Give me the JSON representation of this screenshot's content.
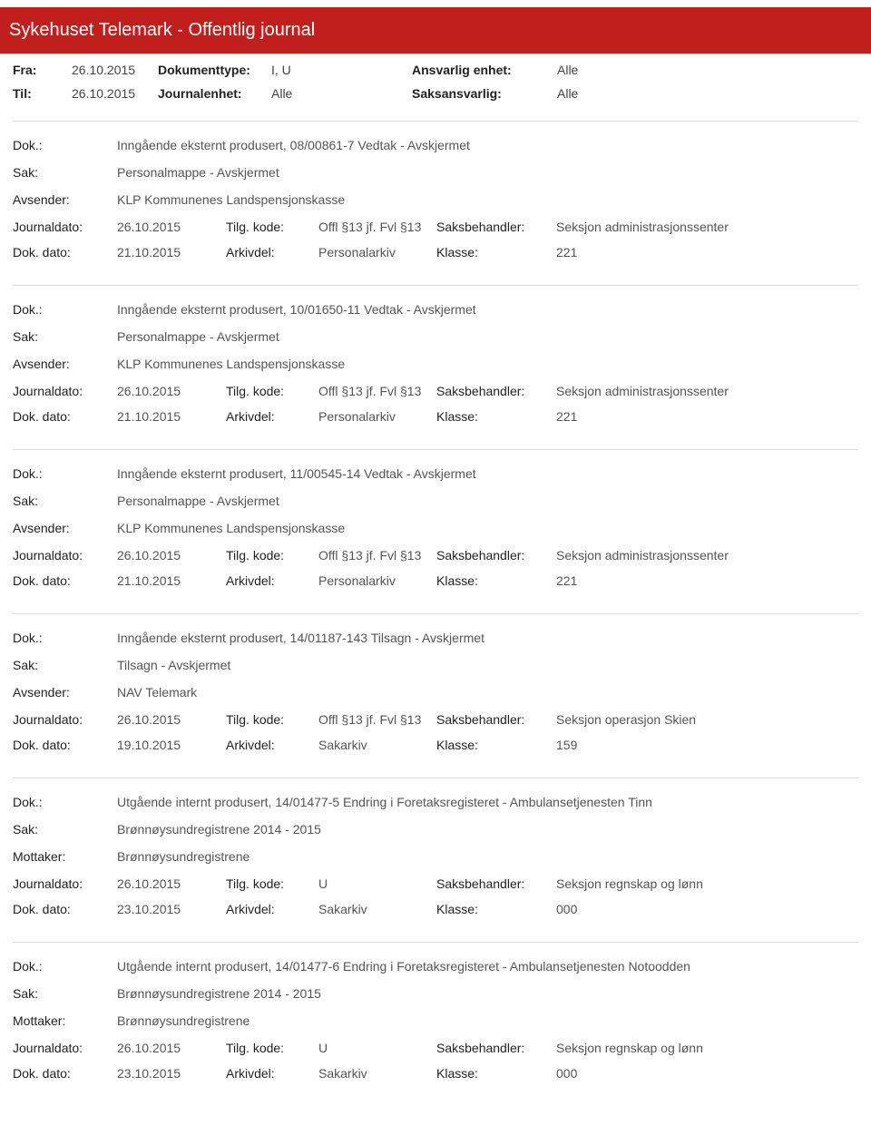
{
  "header": {
    "title": "Sykehuset Telemark - Offentlig journal"
  },
  "filters": {
    "fra_label": "Fra:",
    "fra_value": "26.10.2015",
    "til_label": "Til:",
    "til_value": "26.10.2015",
    "dokumenttype_label": "Dokumenttype:",
    "dokumenttype_value": "I, U",
    "journalenhet_label": "Journalenhet:",
    "journalenhet_value": "Alle",
    "ansvarlig_label": "Ansvarlig enhet:",
    "ansvarlig_value": "Alle",
    "saksansvarlig_label": "Saksansvarlig:",
    "saksansvarlig_value": "Alle"
  },
  "labels": {
    "dok": "Dok.:",
    "sak": "Sak:",
    "avsender": "Avsender:",
    "mottaker": "Mottaker:",
    "journaldato": "Journaldato:",
    "tilgkode": "Tilg. kode:",
    "saksbehandler": "Saksbehandler:",
    "dokdato": "Dok. dato:",
    "arkivdel": "Arkivdel:",
    "klasse": "Klasse:"
  },
  "entries": [
    {
      "dok": "Inngående eksternt produsert, 08/00861-7 Vedtak - Avskjermet",
      "sak": "Personalmappe - Avskjermet",
      "party_label": "Avsender:",
      "party": "KLP Kommunenes Landspensjonskasse",
      "journaldato": "26.10.2015",
      "tilgkode": "Offl §13 jf. Fvl §13",
      "saksbehandler": "Seksjon administrasjonssenter",
      "dokdato": "21.10.2015",
      "arkivdel": "Personalarkiv",
      "klasse": "221"
    },
    {
      "dok": "Inngående eksternt produsert, 10/01650-11 Vedtak - Avskjermet",
      "sak": "Personalmappe - Avskjermet",
      "party_label": "Avsender:",
      "party": "KLP Kommunenes Landspensjonskasse",
      "journaldato": "26.10.2015",
      "tilgkode": "Offl §13 jf. Fvl §13",
      "saksbehandler": "Seksjon administrasjonssenter",
      "dokdato": "21.10.2015",
      "arkivdel": "Personalarkiv",
      "klasse": "221"
    },
    {
      "dok": "Inngående eksternt produsert, 11/00545-14 Vedtak - Avskjermet",
      "sak": "Personalmappe - Avskjermet",
      "party_label": "Avsender:",
      "party": "KLP Kommunenes Landspensjonskasse",
      "journaldato": "26.10.2015",
      "tilgkode": "Offl §13 jf. Fvl §13",
      "saksbehandler": "Seksjon administrasjonssenter",
      "dokdato": "21.10.2015",
      "arkivdel": "Personalarkiv",
      "klasse": "221"
    },
    {
      "dok": "Inngående eksternt produsert, 14/01187-143 Tilsagn - Avskjermet",
      "sak": "Tilsagn - Avskjermet",
      "party_label": "Avsender:",
      "party": "NAV Telemark",
      "journaldato": "26.10.2015",
      "tilgkode": "Offl §13 jf. Fvl §13",
      "saksbehandler": "Seksjon operasjon Skien",
      "dokdato": "19.10.2015",
      "arkivdel": "Sakarkiv",
      "klasse": "159"
    },
    {
      "dok": "Utgående internt produsert, 14/01477-5 Endring i Foretaksregisteret - Ambulansetjenesten Tinn",
      "sak": "Brønnøysundregistrene 2014 - 2015",
      "party_label": "Mottaker:",
      "party": "Brønnøysundregistrene",
      "journaldato": "26.10.2015",
      "tilgkode": "U",
      "saksbehandler": "Seksjon regnskap og lønn",
      "dokdato": "23.10.2015",
      "arkivdel": "Sakarkiv",
      "klasse": "000"
    },
    {
      "dok": "Utgående internt produsert, 14/01477-6 Endring i Foretaksregisteret - Ambulansetjenesten Notoodden",
      "sak": "Brønnøysundregistrene 2014 - 2015",
      "party_label": "Mottaker:",
      "party": "Brønnøysundregistrene",
      "journaldato": "26.10.2015",
      "tilgkode": "U",
      "saksbehandler": "Seksjon regnskap og lønn",
      "dokdato": "23.10.2015",
      "arkivdel": "Sakarkiv",
      "klasse": "000"
    }
  ]
}
